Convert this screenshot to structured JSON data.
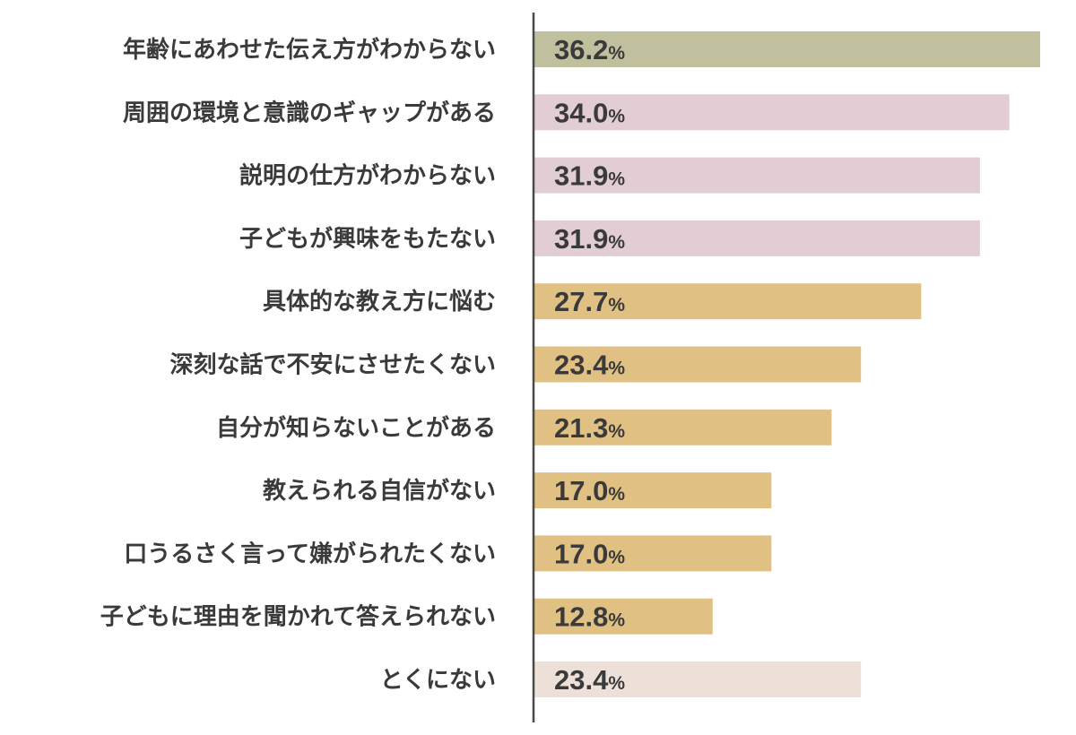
{
  "chart_data": {
    "type": "bar",
    "orientation": "horizontal",
    "title": "",
    "xlabel": "",
    "ylabel": "",
    "xlim": [
      0,
      36.2
    ],
    "grid": false,
    "legend": "none",
    "value_suffix": "%",
    "categories": [
      "年齢にあわせた伝え方がわからない",
      "周囲の環境と意識のギャップがある",
      "説明の仕方がわからない",
      "子どもが興味をもたない",
      "具体的な教え方に悩む",
      "深刻な話で不安にさせたくない",
      "自分が知らないことがある",
      "教えられる自信がない",
      "口うるさく言って嫌がられたくない",
      "子どもに理由を聞かれて答えられない",
      "とくにない"
    ],
    "values": [
      36.2,
      34.0,
      31.9,
      31.9,
      27.7,
      23.4,
      21.3,
      17.0,
      17.0,
      12.8,
      23.4
    ],
    "value_labels": [
      "36.2",
      "34.0",
      "31.9",
      "31.9",
      "27.7",
      "23.4",
      "21.3",
      "17.0",
      "17.0",
      "12.8",
      "23.4"
    ],
    "bar_colors": [
      "#c0c09f",
      "#e2cdd4",
      "#e2cdd4",
      "#e2cdd4",
      "#e1c084",
      "#e1c084",
      "#e1c084",
      "#e1c084",
      "#e1c084",
      "#e1c084",
      "#ede0d8"
    ]
  },
  "colors": {
    "axis": "#4a4a4a",
    "text": "#3a3a3a"
  }
}
